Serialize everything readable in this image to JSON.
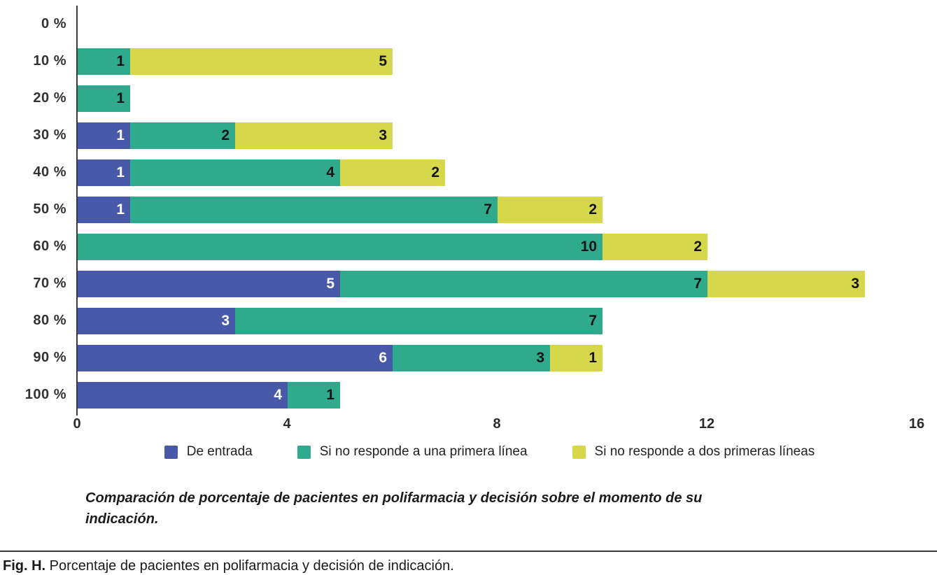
{
  "caption": "Comparación de porcentaje de pacientes en polifarmacia y decisión sobre el momento de su indicación.",
  "figure": {
    "label": "Fig. H.",
    "text": " Porcentaje de pacientes en polifarmacia y decisión de indicación."
  },
  "chart_data": {
    "type": "bar",
    "orientation": "horizontal",
    "stacked": true,
    "title": "",
    "xlabel": "",
    "ylabel": "",
    "categories": [
      "0 %",
      "10 %",
      "20 %",
      "30 %",
      "40 %",
      "50 %",
      "60 %",
      "70 %",
      "80 %",
      "90 %",
      "100 %"
    ],
    "series": [
      {
        "name": "De entrada",
        "color": "#4759a8",
        "label_color": "#ffffff",
        "values": [
          0,
          0,
          0,
          1,
          1,
          1,
          0,
          5,
          3,
          6,
          4
        ]
      },
      {
        "name": "Si no responde a una primera línea",
        "color": "#2faa8c",
        "label_color": "#141414",
        "values": [
          0,
          1,
          1,
          2,
          4,
          7,
          10,
          7,
          7,
          3,
          1
        ]
      },
      {
        "name": "Si no responde a dos primeras líneas",
        "color": "#d6d74b",
        "label_color": "#141414",
        "values": [
          0,
          5,
          0,
          3,
          2,
          2,
          2,
          3,
          0,
          1,
          0
        ]
      }
    ],
    "xlim": [
      0,
      16
    ],
    "x_ticks": [
      0,
      4,
      8,
      12,
      16
    ],
    "grid": false,
    "legend_position": "bottom",
    "axis_color": "#3a3a3a",
    "bar_value_labels": "inside-end"
  }
}
